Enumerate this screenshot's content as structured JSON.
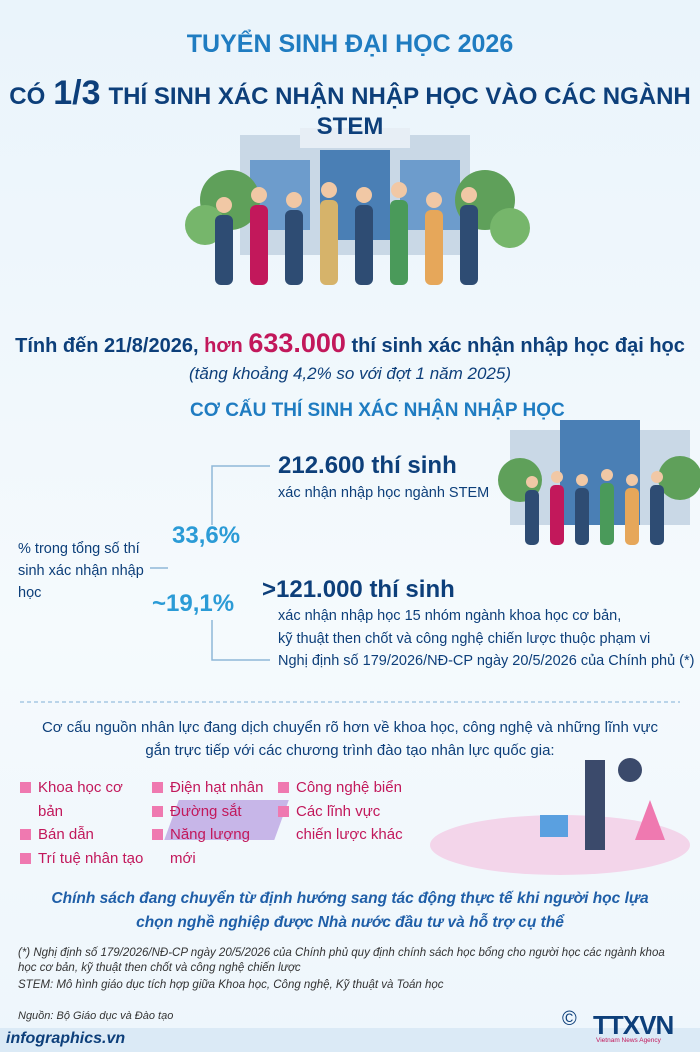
{
  "header": {
    "title": "TUYỂN SINH ĐẠI HỌC 2026",
    "subtitle_prefix": "CÓ",
    "subtitle_fraction": "1/3",
    "subtitle_rest": "THÍ SINH XÁC NHẬN NHẬP HỌC VÀO CÁC NGÀNH STEM"
  },
  "summary": {
    "lead": "Tính đến 21/8/2026,",
    "more": "hơn",
    "total": "633.000",
    "tail": "thí sinh xác nhận nhập học đại học",
    "note": "(tăng khoảng 4,2% so với đợt 1 năm 2025)"
  },
  "structure": {
    "title": "CƠ CẤU THÍ SINH XÁC NHẬN NHẬP HỌC",
    "label": "% trong tổng số thí sinh xác nhận nhập học",
    "items": [
      {
        "percent": "33,6%",
        "count": "212.600 thí sinh",
        "description": [
          "xác nhận nhập học ngành STEM"
        ]
      },
      {
        "percent": "~19,1%",
        "count": ">121.000 thí sinh",
        "description": [
          "xác nhận nhập học 15 nhóm ngành khoa học cơ bản,",
          "kỹ thuật then chốt và công nghệ chiến lược thuộc phạm vi",
          "Nghị định số 179/2026/NĐ-CP ngày 20/5/2026 của Chính phủ (*)"
        ]
      }
    ]
  },
  "workforce": {
    "intro": "Cơ cấu nguồn nhân lực đang dịch chuyển rõ hơn về khoa học, công nghệ và những lĩnh vực gắn trực tiếp với các chương trình đào tạo nhân lực quốc gia:",
    "fields": [
      [
        "Khoa học cơ bản",
        "Bán dẫn",
        "Trí tuệ nhân tạo"
      ],
      [
        "Điện hạt nhân",
        "Đường sắt",
        "Năng lượng mới"
      ],
      [
        "Công nghệ biển",
        "Các lĩnh vực chiến lược khác"
      ]
    ]
  },
  "policy": "Chính sách đang chuyển từ định hướng sang tác động thực tế khi người học lựa chọn nghề nghiệp được Nhà nước đầu tư và hỗ trợ cụ thể",
  "footnotes": [
    "(*) Nghị định số 179/2026/NĐ-CP ngày 20/5/2026 của Chính phủ quy định chính sách học bổng cho người học các ngành khoa học cơ bản, kỹ thuật then chốt và công nghệ chiến lược",
    "STEM: Mô hình giáo dục tích hợp giữa Khoa học, Công nghệ, Kỹ thuật và Toán học"
  ],
  "source": "Nguồn: Bộ Giáo dục và Đào tạo",
  "footer": {
    "site": "infographics.vn",
    "copyright": "©",
    "logo": "TTXVN",
    "logo_sub": "Vietnam News Agency"
  }
}
